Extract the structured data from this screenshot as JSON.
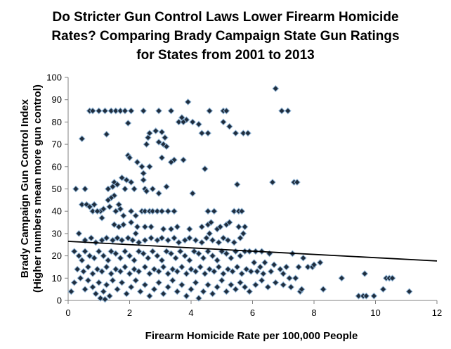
{
  "chart_data": {
    "type": "scatter",
    "title_lines": [
      "Do Stricter Gun Control Laws Lower Firearm Homicide",
      "Rates? Comparing Brady Campaign State Gun Ratings",
      "for States from 2001 to 2013"
    ],
    "xlabel": "Firearm Homicide Rate per 100,000 People",
    "ylabel_lines": [
      "Brady Campaign Gun Control Index",
      "(Higher numbers mean more gun control)"
    ],
    "xlim": [
      0,
      12
    ],
    "ylim": [
      0,
      100
    ],
    "x_ticks": [
      0,
      2,
      4,
      6,
      8,
      10,
      12
    ],
    "y_ticks": [
      0,
      10,
      20,
      30,
      40,
      50,
      60,
      70,
      80,
      90,
      100
    ],
    "grid": false,
    "legend": "none",
    "marker_color": "#1f2d3d",
    "marker_outline": "#8fb4d6",
    "trendline": {
      "x": [
        0,
        12
      ],
      "y": [
        26.5,
        17.7
      ],
      "color": "#000000"
    },
    "points": [
      [
        6.75,
        95
      ],
      [
        0.7,
        85
      ],
      [
        0.8,
        85
      ],
      [
        1.0,
        85
      ],
      [
        1.2,
        85
      ],
      [
        1.4,
        85
      ],
      [
        1.55,
        85
      ],
      [
        1.7,
        85
      ],
      [
        1.85,
        85
      ],
      [
        2.05,
        85
      ],
      [
        2.45,
        85
      ],
      [
        2.95,
        85
      ],
      [
        3.35,
        85
      ],
      [
        4.6,
        85
      ],
      [
        5.05,
        85
      ],
      [
        5.15,
        85
      ],
      [
        6.95,
        85
      ],
      [
        7.15,
        85
      ],
      [
        3.9,
        89
      ],
      [
        3.7,
        82
      ],
      [
        3.85,
        81
      ],
      [
        4.05,
        80
      ],
      [
        3.6,
        80
      ],
      [
        3.75,
        80
      ],
      [
        4.25,
        79
      ],
      [
        5.05,
        80
      ],
      [
        5.25,
        78
      ],
      [
        1.95,
        79.5
      ],
      [
        0.45,
        72.5
      ],
      [
        1.25,
        74.5
      ],
      [
        2.6,
        73
      ],
      [
        2.65,
        75
      ],
      [
        2.85,
        76
      ],
      [
        3.05,
        75.5
      ],
      [
        3.15,
        73
      ],
      [
        4.35,
        75
      ],
      [
        4.55,
        75
      ],
      [
        5.45,
        75
      ],
      [
        5.7,
        75
      ],
      [
        5.85,
        75
      ],
      [
        2.95,
        71
      ],
      [
        3.1,
        70
      ],
      [
        2.55,
        70
      ],
      [
        3.2,
        69
      ],
      [
        2.25,
        62
      ],
      [
        2.4,
        60
      ],
      [
        3.05,
        64
      ],
      [
        3.45,
        63
      ],
      [
        3.75,
        63
      ],
      [
        1.95,
        65
      ],
      [
        2.0,
        64
      ],
      [
        4.45,
        59
      ],
      [
        2.65,
        60
      ],
      [
        3.35,
        62
      ],
      [
        0.25,
        50
      ],
      [
        0.55,
        50
      ],
      [
        1.3,
        50
      ],
      [
        1.5,
        53
      ],
      [
        1.6,
        52
      ],
      [
        1.75,
        55
      ],
      [
        1.9,
        54
      ],
      [
        2.05,
        53
      ],
      [
        2.15,
        50
      ],
      [
        1.85,
        50
      ],
      [
        1.45,
        51
      ],
      [
        2.45,
        54
      ],
      [
        2.5,
        50
      ],
      [
        2.55,
        49
      ],
      [
        2.75,
        50
      ],
      [
        2.95,
        48
      ],
      [
        3.2,
        51
      ],
      [
        4.05,
        48
      ],
      [
        5.5,
        52
      ],
      [
        6.65,
        53
      ],
      [
        7.35,
        53
      ],
      [
        7.45,
        53
      ],
      [
        2.45,
        57
      ],
      [
        1.5,
        47
      ],
      [
        1.4,
        46
      ],
      [
        1.3,
        45
      ],
      [
        1.65,
        43
      ],
      [
        0.45,
        43
      ],
      [
        0.6,
        43
      ],
      [
        0.7,
        42
      ],
      [
        0.8,
        40
      ],
      [
        0.85,
        43
      ],
      [
        1.05,
        40
      ],
      [
        1.15,
        41
      ],
      [
        1.35,
        42
      ],
      [
        1.55,
        40
      ],
      [
        1.7,
        41
      ],
      [
        2.05,
        40
      ],
      [
        2.4,
        40
      ],
      [
        2.5,
        40
      ],
      [
        2.65,
        40
      ],
      [
        2.75,
        40
      ],
      [
        2.9,
        40
      ],
      [
        3.05,
        40
      ],
      [
        3.25,
        40
      ],
      [
        3.45,
        40
      ],
      [
        0.95,
        40
      ],
      [
        1.8,
        38
      ],
      [
        2.2,
        38
      ],
      [
        1.1,
        37
      ],
      [
        4.55,
        40
      ],
      [
        4.75,
        40
      ],
      [
        5.4,
        40
      ],
      [
        5.55,
        40
      ],
      [
        5.65,
        40
      ],
      [
        1.5,
        34
      ],
      [
        1.65,
        33
      ],
      [
        1.8,
        34
      ],
      [
        2.05,
        35
      ],
      [
        2.25,
        33
      ],
      [
        2.5,
        33
      ],
      [
        2.7,
        33
      ],
      [
        3.1,
        32
      ],
      [
        3.35,
        32
      ],
      [
        3.55,
        33
      ],
      [
        3.95,
        32
      ],
      [
        4.55,
        34
      ],
      [
        4.65,
        35
      ],
      [
        4.85,
        32
      ],
      [
        4.95,
        33
      ],
      [
        5.15,
        34
      ],
      [
        5.25,
        35
      ],
      [
        5.55,
        33
      ],
      [
        5.75,
        33
      ],
      [
        4.35,
        33
      ],
      [
        0.35,
        30
      ],
      [
        0.55,
        27
      ],
      [
        0.75,
        28
      ],
      [
        0.9,
        26
      ],
      [
        1.1,
        27
      ],
      [
        1.25,
        28
      ],
      [
        1.45,
        27
      ],
      [
        1.6,
        28
      ],
      [
        1.75,
        27
      ],
      [
        1.95,
        28
      ],
      [
        2.1,
        27
      ],
      [
        2.3,
        26
      ],
      [
        2.5,
        27
      ],
      [
        2.7,
        28
      ],
      [
        2.9,
        27
      ],
      [
        3.05,
        28
      ],
      [
        3.25,
        27
      ],
      [
        3.45,
        28
      ],
      [
        3.6,
        26
      ],
      [
        3.8,
        27
      ],
      [
        3.95,
        28
      ],
      [
        4.15,
        27
      ],
      [
        4.35,
        26
      ],
      [
        4.5,
        28
      ],
      [
        4.7,
        27
      ],
      [
        4.9,
        26
      ],
      [
        5.05,
        28
      ],
      [
        5.2,
        27
      ],
      [
        5.4,
        26
      ],
      [
        5.6,
        28
      ],
      [
        5.7,
        30
      ],
      [
        4.6,
        30
      ],
      [
        2.2,
        30
      ],
      [
        0.2,
        22
      ],
      [
        0.35,
        20
      ],
      [
        0.45,
        18
      ],
      [
        0.55,
        22
      ],
      [
        0.7,
        20
      ],
      [
        0.85,
        19
      ],
      [
        1.0,
        22
      ],
      [
        1.15,
        20
      ],
      [
        1.3,
        18
      ],
      [
        1.4,
        22
      ],
      [
        1.55,
        21
      ],
      [
        1.7,
        19
      ],
      [
        1.85,
        22
      ],
      [
        2.0,
        20
      ],
      [
        2.15,
        18
      ],
      [
        2.3,
        22
      ],
      [
        2.45,
        21
      ],
      [
        2.6,
        19
      ],
      [
        2.75,
        22
      ],
      [
        2.9,
        20
      ],
      [
        3.05,
        18
      ],
      [
        3.2,
        22
      ],
      [
        3.35,
        21
      ],
      [
        3.5,
        19
      ],
      [
        3.65,
        22
      ],
      [
        3.8,
        20
      ],
      [
        3.95,
        18
      ],
      [
        4.1,
        22
      ],
      [
        4.25,
        21
      ],
      [
        4.4,
        19
      ],
      [
        4.55,
        22
      ],
      [
        4.7,
        20
      ],
      [
        4.85,
        18
      ],
      [
        5.0,
        22
      ],
      [
        5.15,
        21
      ],
      [
        5.3,
        19
      ],
      [
        5.45,
        22
      ],
      [
        5.6,
        20
      ],
      [
        5.75,
        22
      ],
      [
        5.9,
        22
      ],
      [
        6.1,
        22
      ],
      [
        6.3,
        22
      ],
      [
        6.55,
        21
      ],
      [
        7.3,
        21
      ],
      [
        7.65,
        19
      ],
      [
        6.05,
        17
      ],
      [
        6.25,
        15
      ],
      [
        6.4,
        17
      ],
      [
        6.7,
        16
      ],
      [
        6.9,
        14
      ],
      [
        7.1,
        15
      ],
      [
        7.5,
        15
      ],
      [
        7.8,
        15
      ],
      [
        7.95,
        15
      ],
      [
        8.0,
        16
      ],
      [
        8.2,
        17
      ],
      [
        0.3,
        14
      ],
      [
        0.5,
        13
      ],
      [
        0.65,
        15
      ],
      [
        0.8,
        12
      ],
      [
        0.95,
        14
      ],
      [
        1.1,
        13
      ],
      [
        1.25,
        15
      ],
      [
        1.4,
        12
      ],
      [
        1.55,
        14
      ],
      [
        1.7,
        13
      ],
      [
        1.85,
        15
      ],
      [
        2.0,
        12
      ],
      [
        2.15,
        14
      ],
      [
        2.3,
        13
      ],
      [
        2.5,
        15
      ],
      [
        2.65,
        12
      ],
      [
        2.8,
        14
      ],
      [
        2.95,
        13
      ],
      [
        3.1,
        15
      ],
      [
        3.25,
        12
      ],
      [
        3.4,
        14
      ],
      [
        3.55,
        13
      ],
      [
        3.7,
        15
      ],
      [
        3.85,
        12
      ],
      [
        4.0,
        14
      ],
      [
        4.15,
        13
      ],
      [
        4.3,
        15
      ],
      [
        4.45,
        12
      ],
      [
        4.6,
        14
      ],
      [
        4.75,
        13
      ],
      [
        4.9,
        15
      ],
      [
        5.05,
        12
      ],
      [
        5.2,
        14
      ],
      [
        5.35,
        13
      ],
      [
        5.5,
        15
      ],
      [
        5.65,
        12
      ],
      [
        5.8,
        14
      ],
      [
        5.95,
        13
      ],
      [
        6.15,
        13
      ],
      [
        6.35,
        12
      ],
      [
        6.6,
        13
      ],
      [
        7.0,
        12
      ],
      [
        7.2,
        10
      ],
      [
        7.4,
        10
      ],
      [
        0.1,
        4
      ],
      [
        0.2,
        8
      ],
      [
        0.4,
        10
      ],
      [
        0.55,
        5
      ],
      [
        0.65,
        9
      ],
      [
        0.8,
        6
      ],
      [
        0.9,
        3
      ],
      [
        1.0,
        8
      ],
      [
        1.05,
        1
      ],
      [
        1.15,
        4
      ],
      [
        1.25,
        7
      ],
      [
        1.35,
        2
      ],
      [
        1.45,
        9
      ],
      [
        1.6,
        5
      ],
      [
        1.75,
        8
      ],
      [
        1.9,
        3
      ],
      [
        2.05,
        6
      ],
      [
        2.2,
        9
      ],
      [
        2.35,
        4
      ],
      [
        2.5,
        7
      ],
      [
        2.65,
        2
      ],
      [
        2.8,
        5
      ],
      [
        2.95,
        8
      ],
      [
        3.1,
        3
      ],
      [
        3.25,
        6
      ],
      [
        3.4,
        9
      ],
      [
        3.55,
        4
      ],
      [
        3.7,
        7
      ],
      [
        3.85,
        2
      ],
      [
        4.0,
        5
      ],
      [
        4.15,
        8
      ],
      [
        4.25,
        1
      ],
      [
        4.4,
        4
      ],
      [
        4.55,
        7
      ],
      [
        4.7,
        3
      ],
      [
        4.85,
        6
      ],
      [
        5.0,
        9
      ],
      [
        5.15,
        4
      ],
      [
        5.3,
        7
      ],
      [
        5.45,
        5
      ],
      [
        5.6,
        8
      ],
      [
        5.75,
        6
      ],
      [
        5.9,
        4
      ],
      [
        6.1,
        7
      ],
      [
        6.3,
        9
      ],
      [
        6.5,
        6
      ],
      [
        6.75,
        8
      ],
      [
        7.0,
        7
      ],
      [
        7.25,
        6
      ],
      [
        7.55,
        4
      ],
      [
        7.6,
        5
      ],
      [
        8.3,
        5
      ],
      [
        8.9,
        10
      ],
      [
        9.45,
        2
      ],
      [
        9.6,
        2
      ],
      [
        9.7,
        2
      ],
      [
        9.65,
        12
      ],
      [
        9.95,
        2
      ],
      [
        10.35,
        10
      ],
      [
        10.45,
        10
      ],
      [
        10.55,
        10
      ],
      [
        10.25,
        5
      ],
      [
        11.1,
        4
      ],
      [
        1.2,
        0.5
      ]
    ]
  }
}
